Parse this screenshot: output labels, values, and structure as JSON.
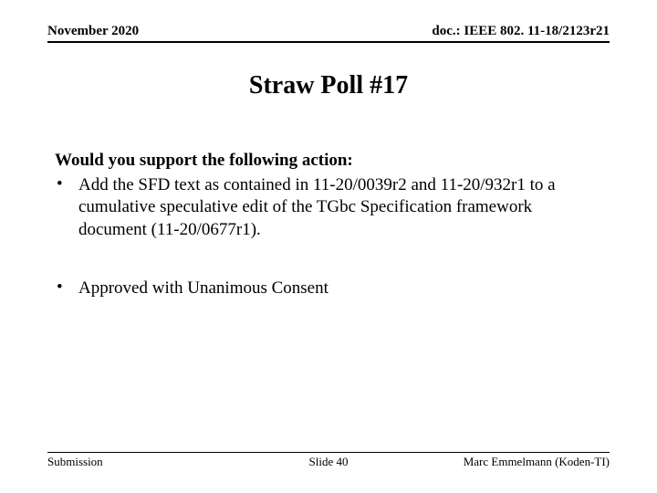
{
  "header": {
    "left": "November 2020",
    "right": "doc.: IEEE 802. 11-18/2123r21"
  },
  "title": "Straw Poll #17",
  "content": {
    "lead": "Would you support the following action:",
    "bullet1": "Add the SFD text as contained in 11-20/0039r2 and 11-20/932r1 to a cumulative speculative edit of the TGbc Specification framework document (11-20/0677r1).",
    "bullet2": "Approved with Unanimous Consent"
  },
  "footer": {
    "left": "Submission",
    "center": "Slide 40",
    "right": "Marc Emmelmann (Koden-TI)"
  },
  "colors": {
    "background": "#ffffff",
    "text": "#000000",
    "rule": "#000000"
  },
  "typography": {
    "font_family": "Times New Roman",
    "header_fontsize": 15,
    "title_fontsize": 28,
    "body_fontsize": 19,
    "footer_fontsize": 13
  }
}
